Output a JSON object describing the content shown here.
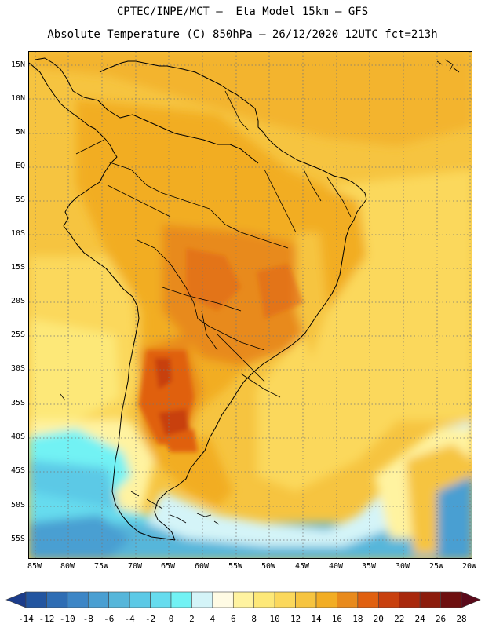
{
  "header": {
    "line1": "CPTEC/INPE/MCT —  Eta Model 15km — GFS",
    "line2": "Absolute Temperature (C) 850hPa — 26/12/2020 12UTC fct=213h"
  },
  "map": {
    "lat_labels": [
      "15N",
      "10N",
      "5N",
      "EQ",
      "5S",
      "10S",
      "15S",
      "20S",
      "25S",
      "30S",
      "35S",
      "40S",
      "45S",
      "50S",
      "55S"
    ],
    "lon_labels": [
      "85W",
      "80W",
      "75W",
      "70W",
      "65W",
      "60W",
      "55W",
      "50W",
      "45W",
      "40W",
      "35W",
      "30W",
      "25W",
      "20W"
    ]
  },
  "colorbar": {
    "labels": [
      "-14",
      "-12",
      "-10",
      "-8",
      "-6",
      "-4",
      "-2",
      "0",
      "2",
      "4",
      "6",
      "8",
      "10",
      "12",
      "14",
      "16",
      "18",
      "20",
      "22",
      "24",
      "26",
      "28"
    ],
    "colors": [
      "#1b3c8a",
      "#2255a0",
      "#2e6db4",
      "#3d86c6",
      "#4a9fd2",
      "#56b6da",
      "#5cc9e6",
      "#66dcee",
      "#72f2f4",
      "#d4f4f8",
      "#fffbe4",
      "#fff3a0",
      "#fde878",
      "#fbd85c",
      "#f6c440",
      "#f2ad24",
      "#e88a1c",
      "#e06010",
      "#c8400e",
      "#a8280c",
      "#8c1c0c",
      "#6e1010",
      "#5a0a1a"
    ]
  }
}
